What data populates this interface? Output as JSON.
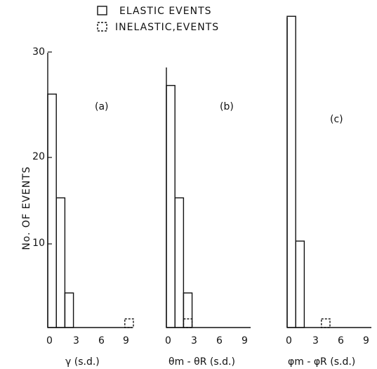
{
  "legend": {
    "elastic_label": "ELASTIC EVENTS",
    "inelastic_label": "INELASTIC,EVENTS"
  },
  "yaxis": {
    "label": "No. OF EVENTS",
    "ticks": [
      10,
      20,
      30
    ]
  },
  "xaxis": {
    "ticks": [
      0,
      3,
      6,
      9
    ]
  },
  "chart_data": [
    {
      "type": "bar",
      "panel_label": "(a)",
      "xlabel": "γ (s.d.)",
      "ylabel": "No. OF EVENTS",
      "xlim": [
        0,
        10.5
      ],
      "ylim": [
        0,
        35
      ],
      "bin_width": 1,
      "series": [
        {
          "name": "ELASTIC EVENTS",
          "x": [
            0,
            1,
            2
          ],
          "values": [
            27,
            15,
            4
          ]
        },
        {
          "name": "INELASTIC,EVENTS",
          "x": [
            9
          ],
          "values": [
            1
          ]
        }
      ]
    },
    {
      "type": "bar",
      "panel_label": "(b)",
      "xlabel": "θm - θR (s.d.)",
      "xlim": [
        0,
        10.5
      ],
      "ylim": [
        0,
        35
      ],
      "bin_width": 1,
      "series": [
        {
          "name": "ELASTIC EVENTS",
          "x": [
            0,
            1,
            2
          ],
          "values": [
            28,
            15,
            4
          ]
        },
        {
          "name": "INELASTIC,EVENTS",
          "x": [
            2
          ],
          "values": [
            1
          ]
        }
      ]
    },
    {
      "type": "bar",
      "panel_label": "(c)",
      "xlabel": "φm - φR (s.d.)",
      "xlim": [
        0,
        10.5
      ],
      "ylim": [
        0,
        35
      ],
      "bin_width": 1,
      "series": [
        {
          "name": "ELASTIC EVENTS",
          "x": [
            0,
            1
          ],
          "values": [
            36,
            10
          ]
        },
        {
          "name": "INELASTIC,EVENTS",
          "x": [
            4
          ],
          "values": [
            1
          ]
        }
      ]
    }
  ]
}
